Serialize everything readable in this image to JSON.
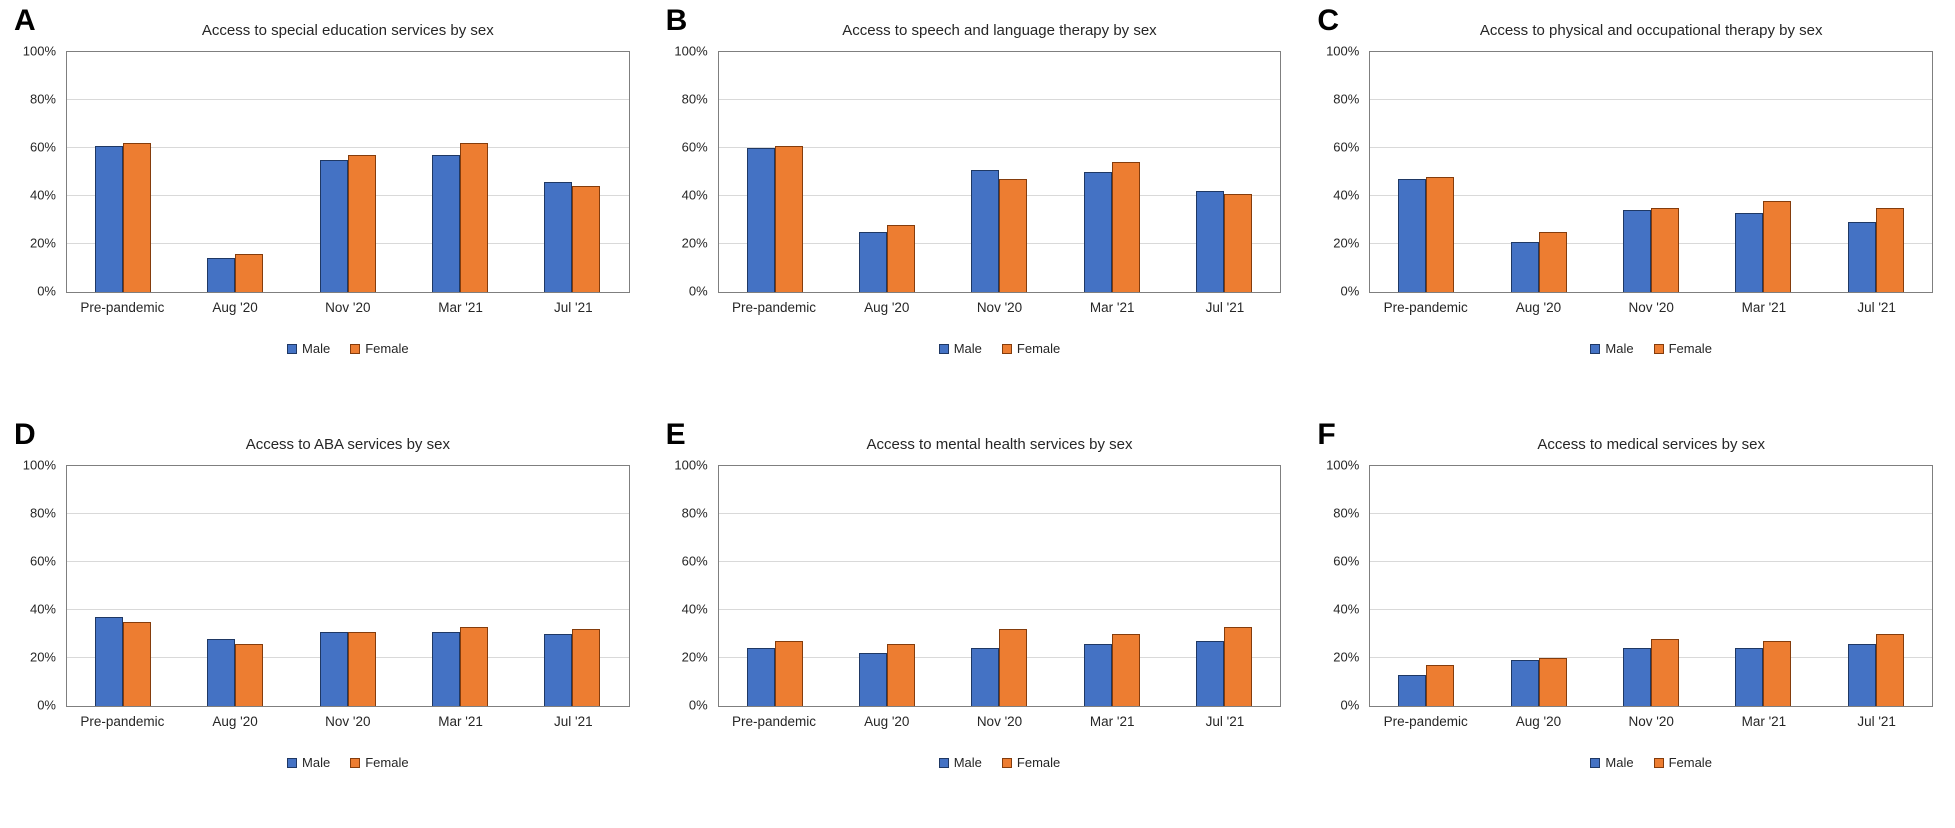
{
  "figure": {
    "legend": {
      "male": "Male",
      "female": "Female"
    },
    "y_ticks": [
      "0%",
      "20%",
      "40%",
      "60%",
      "80%",
      "100%"
    ],
    "categories": [
      "Pre-pandemic",
      "Aug '20",
      "Nov '20",
      "Mar '21",
      "Jul '21"
    ],
    "colors": {
      "male_fill": "#4472C4",
      "male_border": "#1F3864",
      "female_fill": "#ED7D31",
      "female_border": "#843C0C",
      "gridline": "#D9D9D9",
      "plot_border": "#7F7F7F"
    }
  },
  "chart_data": [
    {
      "panel": "A",
      "type": "bar",
      "title": "Access to special education services by sex",
      "categories": [
        "Pre-pandemic",
        "Aug '20",
        "Nov '20",
        "Mar '21",
        "Jul '21"
      ],
      "series": [
        {
          "name": "Male",
          "values": [
            61,
            14,
            55,
            57,
            46
          ]
        },
        {
          "name": "Female",
          "values": [
            62,
            16,
            57,
            62,
            44
          ]
        }
      ],
      "xlabel": "",
      "ylabel": "",
      "ylim": [
        0,
        100
      ],
      "grid": true,
      "legend_position": "bottom"
    },
    {
      "panel": "B",
      "type": "bar",
      "title": "Access to speech and language therapy by sex",
      "categories": [
        "Pre-pandemic",
        "Aug '20",
        "Nov '20",
        "Mar '21",
        "Jul '21"
      ],
      "series": [
        {
          "name": "Male",
          "values": [
            60,
            25,
            51,
            50,
            42
          ]
        },
        {
          "name": "Female",
          "values": [
            61,
            28,
            47,
            54,
            41
          ]
        }
      ],
      "xlabel": "",
      "ylabel": "",
      "ylim": [
        0,
        100
      ],
      "grid": true,
      "legend_position": "bottom"
    },
    {
      "panel": "C",
      "type": "bar",
      "title": "Access to physical and occupational therapy by sex",
      "categories": [
        "Pre-pandemic",
        "Aug '20",
        "Nov '20",
        "Mar '21",
        "Jul '21"
      ],
      "series": [
        {
          "name": "Male",
          "values": [
            47,
            21,
            34,
            33,
            29
          ]
        },
        {
          "name": "Female",
          "values": [
            48,
            25,
            35,
            38,
            35
          ]
        }
      ],
      "xlabel": "",
      "ylabel": "",
      "ylim": [
        0,
        100
      ],
      "grid": true,
      "legend_position": "bottom"
    },
    {
      "panel": "D",
      "type": "bar",
      "title": "Access to ABA services by sex",
      "categories": [
        "Pre-pandemic",
        "Aug '20",
        "Nov '20",
        "Mar '21",
        "Jul '21"
      ],
      "series": [
        {
          "name": "Male",
          "values": [
            37,
            28,
            31,
            31,
            30
          ]
        },
        {
          "name": "Female",
          "values": [
            35,
            26,
            31,
            33,
            32
          ]
        }
      ],
      "xlabel": "",
      "ylabel": "",
      "ylim": [
        0,
        100
      ],
      "grid": true,
      "legend_position": "bottom"
    },
    {
      "panel": "E",
      "type": "bar",
      "title": "Access to mental health services by sex",
      "categories": [
        "Pre-pandemic",
        "Aug '20",
        "Nov '20",
        "Mar '21",
        "Jul '21"
      ],
      "series": [
        {
          "name": "Male",
          "values": [
            24,
            22,
            24,
            26,
            27
          ]
        },
        {
          "name": "Female",
          "values": [
            27,
            26,
            32,
            30,
            33
          ]
        }
      ],
      "xlabel": "",
      "ylabel": "",
      "ylim": [
        0,
        100
      ],
      "grid": true,
      "legend_position": "bottom"
    },
    {
      "panel": "F",
      "type": "bar",
      "title": "Access to medical services by sex",
      "categories": [
        "Pre-pandemic",
        "Aug '20",
        "Nov '20",
        "Mar '21",
        "Jul '21"
      ],
      "series": [
        {
          "name": "Male",
          "values": [
            13,
            19,
            24,
            24,
            26
          ]
        },
        {
          "name": "Female",
          "values": [
            17,
            20,
            28,
            27,
            30
          ]
        }
      ],
      "xlabel": "",
      "ylabel": "",
      "ylim": [
        0,
        100
      ],
      "grid": true,
      "legend_position": "bottom"
    }
  ]
}
